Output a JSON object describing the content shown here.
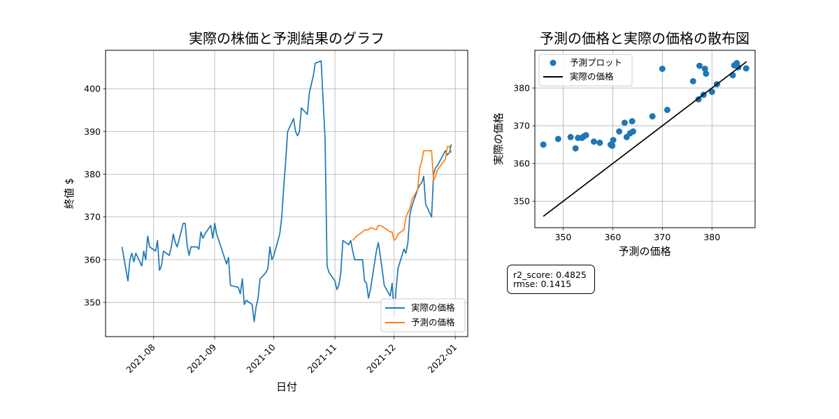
{
  "chart_data": [
    {
      "type": "line",
      "title": "実際の株価と予測結果のグラフ",
      "xlabel": "日付",
      "ylabel": "終値 $",
      "x_tick_labels": [
        "2021-08",
        "2021-09",
        "2021-10",
        "2021-11",
        "2021-12",
        "2022-01"
      ],
      "y_ticks": [
        350,
        360,
        370,
        380,
        390,
        400
      ],
      "ylim": [
        342,
        409
      ],
      "grid": true,
      "legend": "lower-right",
      "series": [
        {
          "name": "実際の価格",
          "color": "#1f77b4",
          "points": [
            [
              "2021-07-16",
              363
            ],
            [
              "2021-07-19",
              355
            ],
            [
              "2021-07-20",
              360
            ],
            [
              "2021-07-21",
              361.5
            ],
            [
              "2021-07-22",
              359.5
            ],
            [
              "2021-07-23",
              361.5
            ],
            [
              "2021-07-26",
              358.5
            ],
            [
              "2021-07-27",
              362
            ],
            [
              "2021-07-28",
              360
            ],
            [
              "2021-07-29",
              365.5
            ],
            [
              "2021-07-30",
              363
            ],
            [
              "2021-08-02",
              362
            ],
            [
              "2021-08-03",
              364.5
            ],
            [
              "2021-08-04",
              357.5
            ],
            [
              "2021-08-05",
              358.5
            ],
            [
              "2021-08-06",
              362
            ],
            [
              "2021-08-09",
              361
            ],
            [
              "2021-08-10",
              363
            ],
            [
              "2021-08-11",
              366
            ],
            [
              "2021-08-12",
              364
            ],
            [
              "2021-08-13",
              363
            ],
            [
              "2021-08-16",
              368.5
            ],
            [
              "2021-08-17",
              368.5
            ],
            [
              "2021-08-18",
              363.5
            ],
            [
              "2021-08-19",
              361
            ],
            [
              "2021-08-20",
              363
            ],
            [
              "2021-08-23",
              363
            ],
            [
              "2021-08-24",
              362.5
            ],
            [
              "2021-08-25",
              366.5
            ],
            [
              "2021-08-26",
              365
            ],
            [
              "2021-08-27",
              366
            ],
            [
              "2021-08-30",
              368
            ],
            [
              "2021-08-31",
              365
            ],
            [
              "2021-09-01",
              368.5
            ],
            [
              "2021-09-02",
              366
            ],
            [
              "2021-09-07",
              359
            ],
            [
              "2021-09-08",
              360.5
            ],
            [
              "2021-09-09",
              354
            ],
            [
              "2021-09-13",
              353.5
            ],
            [
              "2021-09-14",
              352
            ],
            [
              "2021-09-15",
              355.5
            ],
            [
              "2021-09-16",
              349.5
            ],
            [
              "2021-09-17",
              350.5
            ],
            [
              "2021-09-20",
              349.5
            ],
            [
              "2021-09-21",
              345.5
            ],
            [
              "2021-09-22",
              349
            ],
            [
              "2021-09-23",
              351
            ],
            [
              "2021-09-24",
              355.5
            ],
            [
              "2021-09-27",
              357
            ],
            [
              "2021-09-28",
              358
            ],
            [
              "2021-09-29",
              363
            ],
            [
              "2021-09-30",
              360
            ],
            [
              "2021-10-01",
              361
            ],
            [
              "2021-10-04",
              366
            ],
            [
              "2021-10-05",
              370
            ],
            [
              "2021-10-06",
              377
            ],
            [
              "2021-10-07",
              383
            ],
            [
              "2021-10-08",
              390
            ],
            [
              "2021-10-11",
              393
            ],
            [
              "2021-10-12",
              390
            ],
            [
              "2021-10-13",
              389
            ],
            [
              "2021-10-14",
              390
            ],
            [
              "2021-10-15",
              395.5
            ],
            [
              "2021-10-18",
              394
            ],
            [
              "2021-10-19",
              399
            ],
            [
              "2021-10-20",
              401
            ],
            [
              "2021-10-21",
              403
            ],
            [
              "2021-10-22",
              406
            ],
            [
              "2021-10-25",
              406.5
            ],
            [
              "2021-10-27",
              388
            ],
            [
              "2021-10-28",
              358.5
            ],
            [
              "2021-10-29",
              357
            ],
            [
              "2021-11-01",
              355
            ],
            [
              "2021-11-02",
              353
            ],
            [
              "2021-11-03",
              354
            ],
            [
              "2021-11-04",
              357
            ],
            [
              "2021-11-05",
              364.5
            ],
            [
              "2021-11-08",
              363.5
            ],
            [
              "2021-11-09",
              364.5
            ],
            [
              "2021-11-10",
              362
            ],
            [
              "2021-11-11",
              360
            ],
            [
              "2021-11-15",
              360
            ],
            [
              "2021-11-16",
              355
            ],
            [
              "2021-11-17",
              354.5
            ],
            [
              "2021-11-18",
              351
            ],
            [
              "2021-11-19",
              353
            ],
            [
              "2021-11-22",
              362
            ],
            [
              "2021-11-23",
              364
            ],
            [
              "2021-11-24",
              361
            ],
            [
              "2021-11-26",
              354
            ],
            [
              "2021-11-29",
              351.5
            ],
            [
              "2021-11-30",
              354.5
            ],
            [
              "2021-12-01",
              346.5
            ],
            [
              "2021-12-02",
              353
            ],
            [
              "2021-12-03",
              358
            ],
            [
              "2021-12-06",
              362.5
            ],
            [
              "2021-12-07",
              361.5
            ],
            [
              "2021-12-08",
              364
            ],
            [
              "2021-12-09",
              370.5
            ],
            [
              "2021-12-10",
              372.5
            ],
            [
              "2021-12-13",
              376.5
            ],
            [
              "2021-12-14",
              377.5
            ],
            [
              "2021-12-15",
              378
            ],
            [
              "2021-12-16",
              379.5
            ],
            [
              "2021-12-17",
              373
            ],
            [
              "2021-12-20",
              370
            ],
            [
              "2021-12-21",
              380
            ],
            [
              "2021-12-22",
              381.5
            ],
            [
              "2021-12-23",
              382
            ],
            [
              "2021-12-27",
              385.5
            ],
            [
              "2021-12-28",
              384.5
            ],
            [
              "2021-12-29",
              385
            ],
            [
              "2021-12-30",
              387
            ]
          ]
        },
        {
          "name": "予測の価格",
          "color": "#ff7f0e",
          "points": [
            [
              "2021-11-10",
              364.5
            ],
            [
              "2021-11-11",
              365
            ],
            [
              "2021-11-12",
              365.5
            ],
            [
              "2021-11-15",
              366.5
            ],
            [
              "2021-11-16",
              367
            ],
            [
              "2021-11-17",
              367
            ],
            [
              "2021-11-18",
              367
            ],
            [
              "2021-11-19",
              367.5
            ],
            [
              "2021-11-22",
              367
            ],
            [
              "2021-11-23",
              368
            ],
            [
              "2021-11-24",
              368
            ],
            [
              "2021-11-26",
              367.5
            ],
            [
              "2021-11-29",
              366.5
            ],
            [
              "2021-11-30",
              366.5
            ],
            [
              "2021-12-01",
              364.5
            ],
            [
              "2021-12-02",
              365
            ],
            [
              "2021-12-03",
              366
            ],
            [
              "2021-12-06",
              367
            ],
            [
              "2021-12-07",
              370
            ],
            [
              "2021-12-08",
              371
            ],
            [
              "2021-12-09",
              372
            ],
            [
              "2021-12-10",
              374
            ],
            [
              "2021-12-13",
              376.5
            ],
            [
              "2021-12-14",
              381.5
            ],
            [
              "2021-12-15",
              383
            ],
            [
              "2021-12-16",
              385.5
            ],
            [
              "2021-12-17",
              385.5
            ],
            [
              "2021-12-20",
              385.5
            ],
            [
              "2021-12-21",
              378.5
            ],
            [
              "2021-12-22",
              379.5
            ],
            [
              "2021-12-23",
              381
            ],
            [
              "2021-12-27",
              383.5
            ],
            [
              "2021-12-28",
              386.5
            ],
            [
              "2021-12-29",
              386.5
            ],
            [
              "2021-12-30",
              385
            ]
          ]
        }
      ]
    },
    {
      "type": "scatter",
      "title": "予測の価格と実際の価格の散布図",
      "xlabel": "予測の価格",
      "ylabel": "実際の価格",
      "x_ticks": [
        350,
        360,
        370,
        380
      ],
      "y_ticks": [
        350,
        360,
        370,
        380
      ],
      "xlim": [
        344.3,
        388.7
      ],
      "ylim": [
        343.0,
        390.0
      ],
      "grid": true,
      "legend": "upper-left",
      "scatter": {
        "name": "予測プロット",
        "color": "#1f77b4",
        "points": [
          [
            346,
            365
          ],
          [
            349,
            366.5
          ],
          [
            351.5,
            367
          ],
          [
            352.5,
            364
          ],
          [
            353,
            366.8
          ],
          [
            353.8,
            366.8
          ],
          [
            354.2,
            367.2
          ],
          [
            354.6,
            367.5
          ],
          [
            356.2,
            365.8
          ],
          [
            357.4,
            365.5
          ],
          [
            359.6,
            365
          ],
          [
            359.9,
            364.7
          ],
          [
            360.1,
            366.2
          ],
          [
            361.3,
            368.5
          ],
          [
            362.4,
            370.8
          ],
          [
            362.8,
            367
          ],
          [
            363.5,
            368
          ],
          [
            363.9,
            371.2
          ],
          [
            364.1,
            368.5
          ],
          [
            368,
            372.5
          ],
          [
            370,
            385.1
          ],
          [
            371,
            374.2
          ],
          [
            376.2,
            381.8
          ],
          [
            377.3,
            377
          ],
          [
            377.5,
            385.9
          ],
          [
            378.3,
            378.2
          ],
          [
            378.6,
            385.1
          ],
          [
            378.8,
            383.8
          ],
          [
            380,
            379
          ],
          [
            381,
            381
          ],
          [
            384.2,
            383.4
          ],
          [
            384.5,
            386
          ],
          [
            385,
            386.6
          ],
          [
            385.3,
            385.5
          ],
          [
            386.9,
            385.2
          ]
        ]
      },
      "line": {
        "name": "実際の価格",
        "color": "#000000",
        "points": [
          [
            346,
            346
          ],
          [
            387,
            387
          ]
        ]
      }
    }
  ],
  "metrics": {
    "r2_line": "r2_score: 0.4825",
    "rmse_line": "rmse: 0.1415"
  }
}
